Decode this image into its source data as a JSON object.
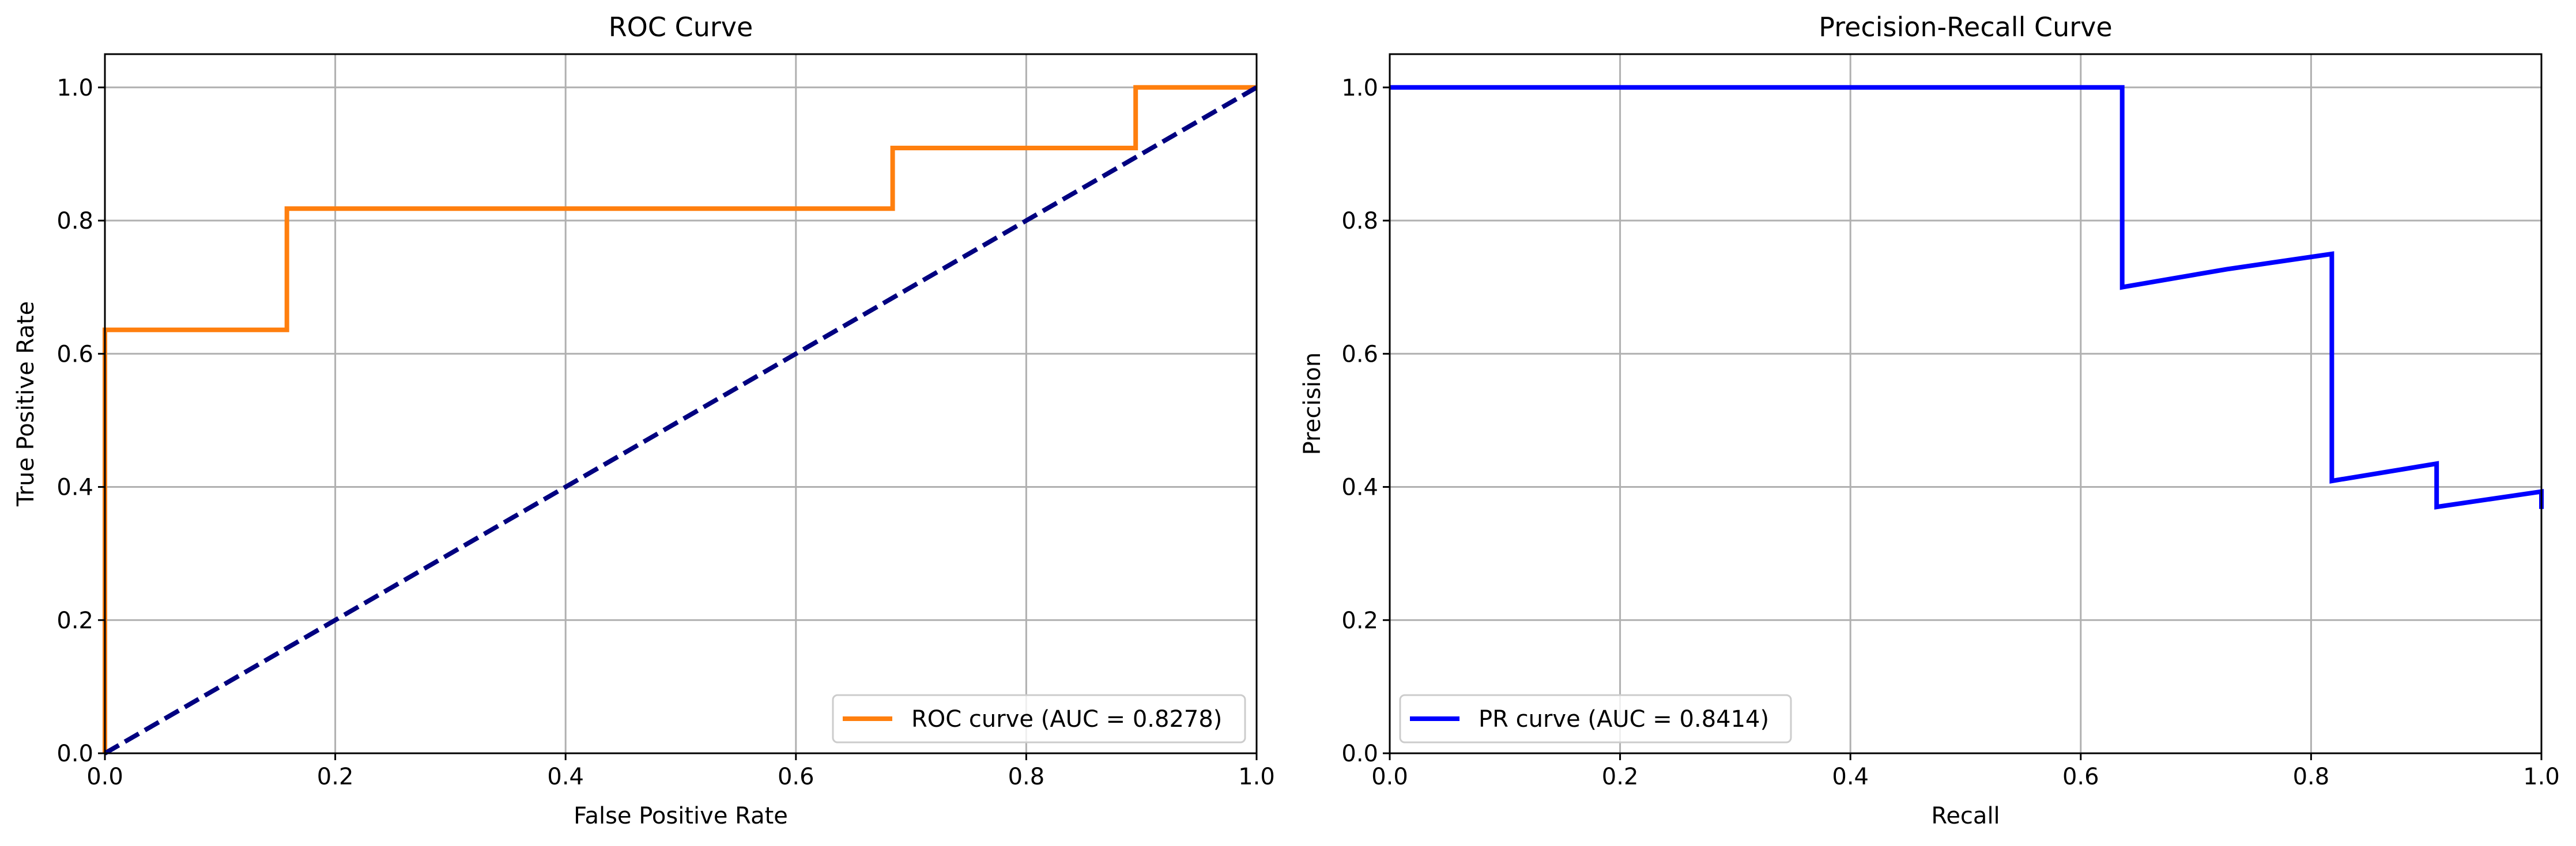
{
  "chart_data": [
    {
      "type": "line",
      "title": "ROC Curve",
      "xlabel": "False Positive Rate",
      "ylabel": "True Positive Rate",
      "xlim": [
        0,
        1
      ],
      "ylim": [
        0,
        1.05
      ],
      "xticks": [
        "0.0",
        "0.2",
        "0.4",
        "0.6",
        "0.8",
        "1.0"
      ],
      "yticks": [
        "0.0",
        "0.2",
        "0.4",
        "0.6",
        "0.8",
        "1.0"
      ],
      "grid": true,
      "legend_position": "lower-right",
      "series": [
        {
          "name": "ROC curve (AUC = 0.8278)",
          "color": "#ff7f0e",
          "style": "solid",
          "x": [
            0.0,
            0.0,
            0.158,
            0.158,
            0.684,
            0.684,
            0.895,
            0.895,
            1.0
          ],
          "y": [
            0.0,
            0.636,
            0.636,
            0.818,
            0.818,
            0.909,
            0.909,
            1.0,
            1.0
          ]
        },
        {
          "name": "",
          "color": "#000080",
          "style": "dashed",
          "x": [
            0.0,
            1.0
          ],
          "y": [
            0.0,
            1.0
          ]
        }
      ]
    },
    {
      "type": "line",
      "title": "Precision-Recall Curve",
      "xlabel": "Recall",
      "ylabel": "Precision",
      "xlim": [
        0,
        1
      ],
      "ylim": [
        0,
        1.05
      ],
      "xticks": [
        "0.0",
        "0.2",
        "0.4",
        "0.6",
        "0.8",
        "1.0"
      ],
      "yticks": [
        "0.0",
        "0.2",
        "0.4",
        "0.6",
        "0.8",
        "1.0"
      ],
      "grid": true,
      "legend_position": "lower-left",
      "series": [
        {
          "name": "PR curve (AUC = 0.8414)",
          "color": "#0000ff",
          "style": "solid",
          "x": [
            0.0,
            0.636,
            0.636,
            0.727,
            0.818,
            0.818,
            0.909,
            0.909,
            1.0,
            1.0
          ],
          "y": [
            1.0,
            1.0,
            0.7,
            0.727,
            0.75,
            0.409,
            0.435,
            0.37,
            0.393,
            0.367
          ]
        }
      ]
    }
  ]
}
